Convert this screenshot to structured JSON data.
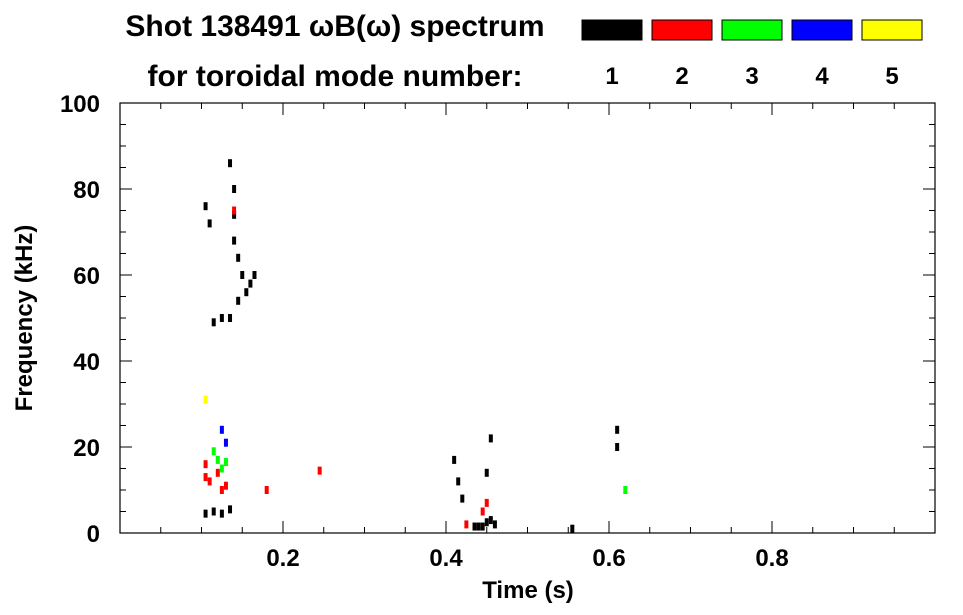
{
  "chart_data": {
    "type": "heatmap",
    "title_line1": "Shot 138491 ωB(ω) spectrum",
    "title_line2": "for toroidal mode number:",
    "xlabel": "Time (s)",
    "ylabel": "Frequency (kHz)",
    "xlim": [
      0.0,
      1.0
    ],
    "ylim": [
      0,
      100
    ],
    "xticks": [
      0.2,
      0.4,
      0.6,
      0.8
    ],
    "xtick_labels": [
      "0.2",
      "0.4",
      "0.6",
      "0.8"
    ],
    "yticks": [
      0,
      20,
      40,
      60,
      80,
      100
    ],
    "ytick_labels": [
      "0",
      "20",
      "40",
      "60",
      "80",
      "100"
    ],
    "legend_placement": "top-right",
    "legend": [
      {
        "label": "1",
        "color": "#000000"
      },
      {
        "label": "2",
        "color": "#ff0000"
      },
      {
        "label": "3",
        "color": "#00ff00"
      },
      {
        "label": "4",
        "color": "#0000ff"
      },
      {
        "label": "5",
        "color": "#ffff00"
      }
    ],
    "series": [
      {
        "mode": 1,
        "color": "#000000",
        "points": [
          [
            0.105,
            76
          ],
          [
            0.11,
            72
          ],
          [
            0.135,
            86
          ],
          [
            0.14,
            80
          ],
          [
            0.14,
            74
          ],
          [
            0.14,
            68
          ],
          [
            0.145,
            64
          ],
          [
            0.15,
            60
          ],
          [
            0.155,
            56
          ],
          [
            0.145,
            54
          ],
          [
            0.135,
            50
          ],
          [
            0.125,
            50
          ],
          [
            0.115,
            49
          ],
          [
            0.16,
            58
          ],
          [
            0.165,
            60
          ],
          [
            0.105,
            4.5
          ],
          [
            0.115,
            5
          ],
          [
            0.125,
            4.5
          ],
          [
            0.135,
            5.5
          ],
          [
            0.41,
            17
          ],
          [
            0.415,
            12
          ],
          [
            0.42,
            8
          ],
          [
            0.435,
            1.5
          ],
          [
            0.44,
            1.5
          ],
          [
            0.445,
            1.5
          ],
          [
            0.45,
            2.5
          ],
          [
            0.455,
            3
          ],
          [
            0.46,
            2
          ],
          [
            0.455,
            22
          ],
          [
            0.45,
            14
          ],
          [
            0.555,
            1
          ],
          [
            0.61,
            24
          ],
          [
            0.61,
            20
          ]
        ]
      },
      {
        "mode": 2,
        "color": "#ff0000",
        "points": [
          [
            0.105,
            13
          ],
          [
            0.105,
            16
          ],
          [
            0.11,
            12
          ],
          [
            0.12,
            14
          ],
          [
            0.125,
            10
          ],
          [
            0.13,
            11
          ],
          [
            0.14,
            75
          ],
          [
            0.18,
            10
          ],
          [
            0.245,
            14.5
          ],
          [
            0.425,
            2
          ],
          [
            0.445,
            5
          ],
          [
            0.45,
            7
          ]
        ]
      },
      {
        "mode": 3,
        "color": "#00ff00",
        "points": [
          [
            0.115,
            19
          ],
          [
            0.12,
            17
          ],
          [
            0.125,
            15
          ],
          [
            0.13,
            16.5
          ],
          [
            0.62,
            10
          ]
        ]
      },
      {
        "mode": 4,
        "color": "#0000ff",
        "points": [
          [
            0.125,
            24
          ],
          [
            0.13,
            21
          ]
        ]
      },
      {
        "mode": 5,
        "color": "#ffff00",
        "points": [
          [
            0.105,
            31
          ]
        ]
      }
    ]
  }
}
